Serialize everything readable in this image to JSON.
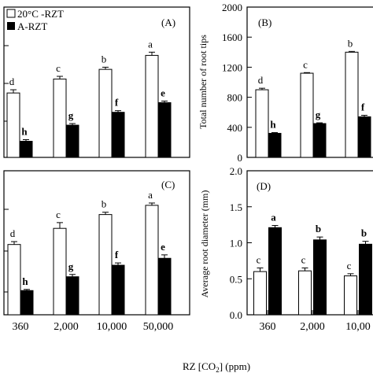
{
  "figure": {
    "xlabel": "RZ [CO2] (ppm)"
  },
  "chart_data": [
    {
      "panel": "(A)",
      "type": "bar",
      "categories": [
        "360",
        "2,000",
        "10,000",
        "50,000"
      ],
      "series": [
        {
          "name": "20°C -RZT",
          "values": [
            60,
            73,
            82,
            95
          ],
          "errors": [
            3,
            2.5,
            2,
            3
          ],
          "letters": [
            "d",
            "c",
            "b",
            "a"
          ]
        },
        {
          "name": "A-RZT",
          "values": [
            15,
            30,
            42,
            51
          ],
          "errors": [
            1.5,
            1.5,
            1.5,
            1.5
          ],
          "letters": [
            "h",
            "g",
            "f",
            "e"
          ]
        }
      ],
      "ylim": [
        0,
        140
      ],
      "yticks": [],
      "ylabel": "",
      "legend": "top-left"
    },
    {
      "panel": "(B)",
      "type": "bar",
      "categories": [
        "360",
        "2,000",
        "10,000"
      ],
      "series": [
        {
          "name": "20°C -RZT",
          "values": [
            900,
            1120,
            1400
          ],
          "errors": [
            20,
            8,
            10
          ],
          "letters": [
            "d",
            "c",
            "b"
          ]
        },
        {
          "name": "A-RZT",
          "values": [
            320,
            450,
            540
          ],
          "errors": [
            10,
            10,
            20
          ],
          "letters": [
            "h",
            "g",
            "f"
          ]
        }
      ],
      "ylim": [
        0,
        2000
      ],
      "yticks": [
        "0",
        "400",
        "800",
        "1200",
        "1600",
        "2000"
      ],
      "ylabel": "Total number of root tips"
    },
    {
      "panel": "(C)",
      "type": "bar",
      "categories": [
        "360",
        "2,000",
        "10,000",
        "50,000"
      ],
      "series": [
        {
          "name": "20°C -RZT",
          "values": [
            61,
            75,
            87,
            95
          ],
          "errors": [
            2.5,
            5,
            2,
            2
          ],
          "letters": [
            "d",
            "c",
            "b",
            "a"
          ]
        },
        {
          "name": "A-RZT",
          "values": [
            21,
            33,
            43,
            49
          ],
          "errors": [
            1,
            2,
            2,
            3
          ],
          "letters": [
            "h",
            "g",
            "f",
            "e"
          ]
        }
      ],
      "ylim": [
        0,
        125
      ],
      "yticks": [],
      "ylabel": ""
    },
    {
      "panel": "(D)",
      "type": "bar",
      "categories": [
        "360",
        "2,000",
        "10,00"
      ],
      "series": [
        {
          "name": "20°C -RZT",
          "values": [
            0.6,
            0.61,
            0.54
          ],
          "errors": [
            0.05,
            0.04,
            0.03
          ],
          "letters": [
            "c",
            "c",
            "c"
          ]
        },
        {
          "name": "A-RZT",
          "values": [
            1.21,
            1.04,
            0.98
          ],
          "errors": [
            0.03,
            0.04,
            0.04
          ],
          "letters": [
            "a",
            "b",
            "b"
          ]
        }
      ],
      "ylim": [
        0,
        2.0
      ],
      "yticks": [
        "0.0",
        "0.5",
        "1.0",
        "1.5",
        "2.0"
      ],
      "ylabel": "Average root diameter (mm)"
    }
  ]
}
